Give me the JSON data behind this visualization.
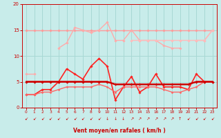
{
  "bg_color": "#c8ecea",
  "grid_color": "#a8d8d4",
  "x": [
    0,
    1,
    2,
    3,
    4,
    5,
    6,
    7,
    8,
    9,
    10,
    11,
    12,
    13,
    14,
    15,
    16,
    17,
    18,
    19,
    20,
    21,
    22,
    23
  ],
  "lines": [
    {
      "y": [
        15,
        15,
        15,
        15,
        15,
        15,
        15,
        15,
        15,
        15,
        15,
        15,
        15,
        15,
        15,
        15,
        15,
        15,
        15,
        15,
        15,
        15,
        15,
        15
      ],
      "color": "#ff9999",
      "lw": 1.0,
      "marker": "D",
      "ms": 1.8,
      "zorder": 2
    },
    {
      "y": [
        6.5,
        6.5,
        null,
        null,
        11.5,
        12.5,
        15.5,
        15.0,
        14.5,
        15.0,
        16.5,
        13.0,
        13.0,
        15.0,
        13.0,
        13.0,
        13.0,
        12.0,
        11.5,
        11.5,
        null,
        13.0,
        13.0,
        15.0
      ],
      "color": "#ffaaaa",
      "lw": 1.0,
      "marker": "D",
      "ms": 1.8,
      "zorder": 2
    },
    {
      "y": [
        null,
        null,
        null,
        null,
        null,
        null,
        null,
        null,
        null,
        null,
        null,
        null,
        null,
        13.0,
        13.0,
        13.0,
        13.0,
        13.0,
        13.0,
        13.0,
        13.0,
        13.0,
        13.0,
        15.0
      ],
      "color": "#ffbbbb",
      "lw": 1.0,
      "marker": "D",
      "ms": 1.8,
      "zorder": 2
    },
    {
      "y": [
        2.5,
        2.5,
        3.5,
        3.5,
        5.0,
        7.5,
        6.5,
        5.5,
        8.0,
        9.5,
        8.0,
        1.5,
        4.0,
        6.0,
        3.0,
        4.0,
        6.5,
        4.0,
        4.0,
        4.0,
        3.5,
        6.5,
        5.0,
        5.0
      ],
      "color": "#ff2222",
      "lw": 1.2,
      "marker": "D",
      "ms": 1.8,
      "zorder": 3
    },
    {
      "y": [
        5.0,
        5.0,
        5.0,
        5.0,
        5.0,
        5.0,
        5.0,
        5.0,
        5.0,
        5.0,
        5.0,
        4.5,
        4.5,
        4.5,
        4.5,
        4.5,
        4.5,
        4.5,
        4.5,
        4.5,
        4.5,
        5.0,
        5.0,
        5.0
      ],
      "color": "#cc0000",
      "lw": 1.5,
      "marker": "D",
      "ms": 1.8,
      "zorder": 4
    },
    {
      "y": [
        2.5,
        2.5,
        3.0,
        3.0,
        3.5,
        4.0,
        4.0,
        4.0,
        4.0,
        4.5,
        4.0,
        3.0,
        4.0,
        4.0,
        4.0,
        4.0,
        4.0,
        3.5,
        3.0,
        3.0,
        3.5,
        4.0,
        5.0,
        5.0
      ],
      "color": "#ff6666",
      "lw": 1.0,
      "marker": "D",
      "ms": 1.5,
      "zorder": 3
    },
    {
      "y": [
        5.0,
        5.0,
        5.0,
        5.0,
        5.0,
        5.0,
        5.0,
        5.0,
        5.0,
        5.0,
        5.0,
        4.5,
        4.5,
        4.5,
        4.5,
        4.5,
        4.5,
        4.5,
        4.5,
        4.5,
        4.5,
        5.0,
        5.0,
        5.0
      ],
      "color": "#dd0000",
      "lw": 1.5,
      "marker": null,
      "ms": 0,
      "zorder": 2
    },
    {
      "y": [
        5.0,
        5.0,
        5.0,
        5.0,
        5.0,
        5.0,
        5.0,
        5.0,
        5.0,
        5.0,
        5.0,
        4.5,
        4.5,
        4.5,
        4.5,
        4.5,
        4.5,
        4.5,
        4.5,
        4.5,
        4.5,
        5.0,
        5.0,
        5.0
      ],
      "color": "#ff4444",
      "lw": 1.0,
      "marker": null,
      "ms": 0,
      "zorder": 2
    }
  ],
  "arrows": [
    "sw",
    "sw",
    "sw",
    "sw",
    "sw",
    "sw",
    "sw",
    "sw",
    "sw",
    "sw",
    "s",
    "s",
    "s",
    "ne",
    "ne",
    "ne",
    "ne",
    "ne",
    "ne",
    "n",
    "sw",
    "sw",
    "sw",
    "sw"
  ],
  "xlabel": "Vent moyen/en rafales ( km/h )",
  "xlim": [
    -0.5,
    23.5
  ],
  "ylim": [
    0,
    20
  ],
  "yticks": [
    0,
    5,
    10,
    15,
    20
  ],
  "xticks": [
    0,
    1,
    2,
    3,
    4,
    5,
    6,
    7,
    8,
    9,
    10,
    11,
    12,
    13,
    14,
    15,
    16,
    17,
    18,
    19,
    20,
    21,
    22,
    23
  ],
  "tick_color": "#cc0000",
  "label_color": "#cc0000",
  "axis_color": "#cc0000"
}
